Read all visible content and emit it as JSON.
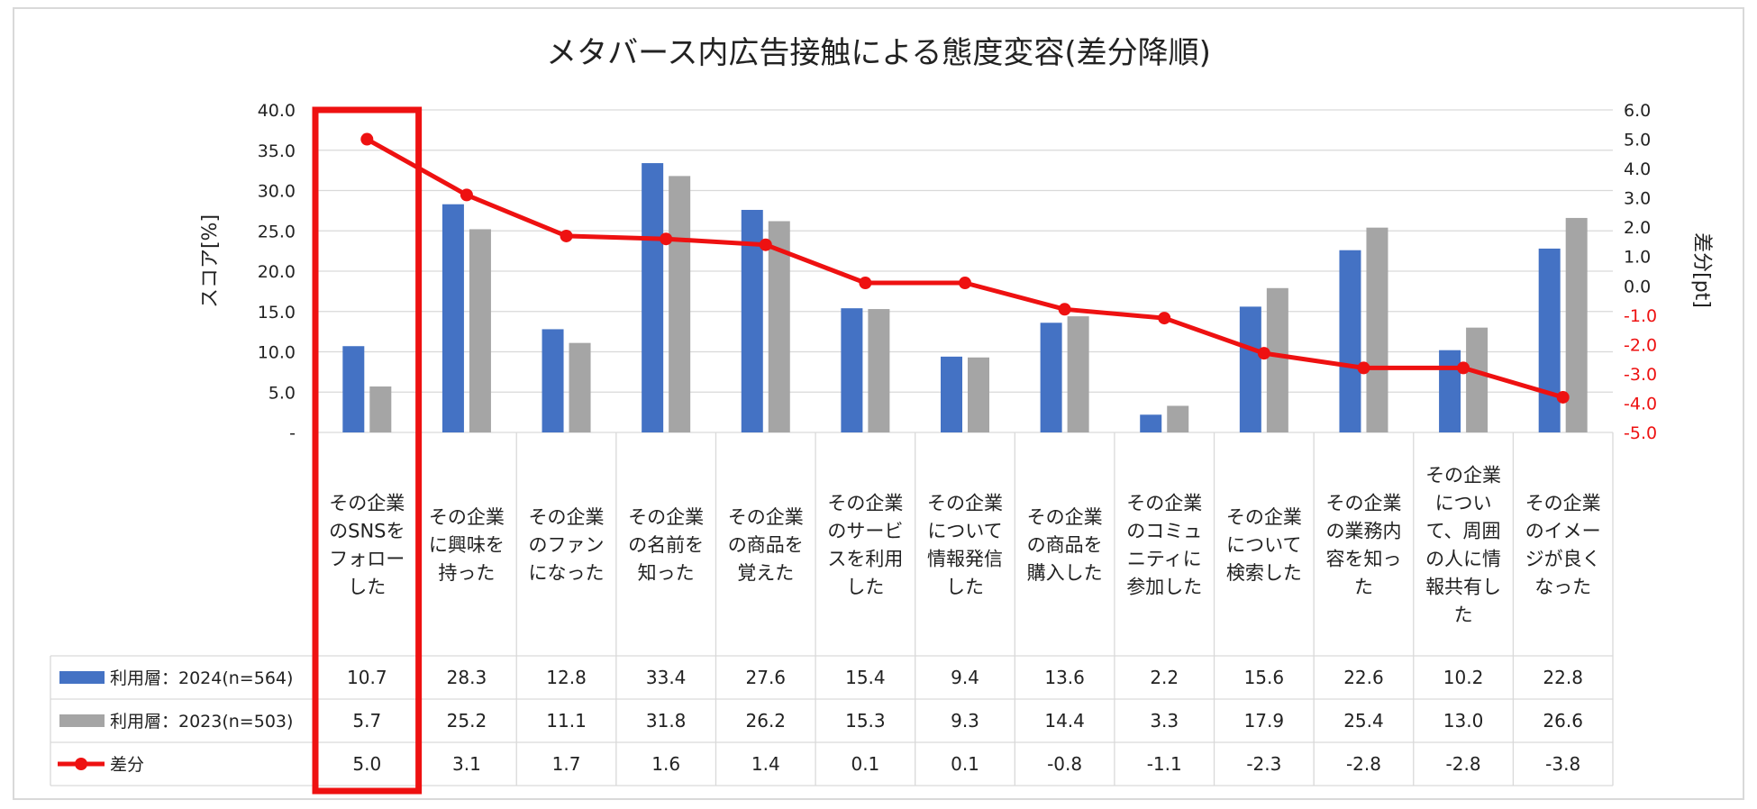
{
  "chart_data": {
    "type": "bar",
    "title": "メタバース内広告接触による態度変容(差分降順)",
    "ylabel": "スコア[%]",
    "y2label": "差分[pt]",
    "ylim": [
      0,
      40
    ],
    "y2lim": [
      -5,
      6
    ],
    "y_ticks": [
      "-",
      "5.0",
      "10.0",
      "15.0",
      "20.0",
      "25.0",
      "30.0",
      "35.0",
      "40.0"
    ],
    "y2_ticks": [
      "-5.0",
      "-4.0",
      "-3.0",
      "-2.0",
      "-1.0",
      "0.0",
      "1.0",
      "2.0",
      "3.0",
      "4.0",
      "5.0",
      "6.0"
    ],
    "categories": [
      [
        "その企業",
        "のSNSを",
        "フォロー",
        "した"
      ],
      [
        "その企業",
        "に興味を",
        "持った"
      ],
      [
        "その企業",
        "のファン",
        "になった"
      ],
      [
        "その企業",
        "の名前を",
        "知った"
      ],
      [
        "その企業",
        "の商品を",
        "覚えた"
      ],
      [
        "その企業",
        "のサービ",
        "スを利用",
        "した"
      ],
      [
        "その企業",
        "について",
        "情報発信",
        "した"
      ],
      [
        "その企業",
        "の商品を",
        "購入した"
      ],
      [
        "その企業",
        "のコミュ",
        "ニティに",
        "参加した"
      ],
      [
        "その企業",
        "について",
        "検索した"
      ],
      [
        "その企業",
        "の業務内",
        "容を知っ",
        "た"
      ],
      [
        "その企業",
        "につい",
        "て、周囲",
        "の人に情",
        "報共有し",
        "た"
      ],
      [
        "その企業",
        "のイメー",
        "ジが良く",
        "なった"
      ]
    ],
    "series": [
      {
        "name": "利用層：2024(n=564)",
        "type": "bar",
        "axis": "left",
        "color": "#4472c4",
        "values": [
          10.7,
          28.3,
          12.8,
          33.4,
          27.6,
          15.4,
          9.4,
          13.6,
          2.2,
          15.6,
          22.6,
          10.2,
          22.8
        ],
        "labels": [
          "10.7",
          "28.3",
          "12.8",
          "33.4",
          "27.6",
          "15.4",
          "9.4",
          "13.6",
          "2.2",
          "15.6",
          "22.6",
          "10.2",
          "22.8"
        ]
      },
      {
        "name": "利用層：2023(n=503)",
        "type": "bar",
        "axis": "left",
        "color": "#a5a5a5",
        "values": [
          5.7,
          25.2,
          11.1,
          31.8,
          26.2,
          15.3,
          9.3,
          14.4,
          3.3,
          17.9,
          25.4,
          13.0,
          26.6
        ],
        "labels": [
          "5.7",
          "25.2",
          "11.1",
          "31.8",
          "26.2",
          "15.3",
          "9.3",
          "14.4",
          "3.3",
          "17.9",
          "25.4",
          "13.0",
          "26.6"
        ]
      },
      {
        "name": "差分",
        "type": "line",
        "axis": "right",
        "color": "#ee1111",
        "values": [
          5.0,
          3.1,
          1.7,
          1.6,
          1.4,
          0.1,
          0.1,
          -0.8,
          -1.1,
          -2.3,
          -2.8,
          -2.8,
          -3.8
        ],
        "labels": [
          "5.0",
          "3.1",
          "1.7",
          "1.6",
          "1.4",
          "0.1",
          "0.1",
          "-0.8",
          "-1.1",
          "-2.3",
          "-2.8",
          "-2.8",
          "-3.8"
        ]
      }
    ],
    "highlight_category": 0,
    "highlight_color": "#ee1111"
  }
}
